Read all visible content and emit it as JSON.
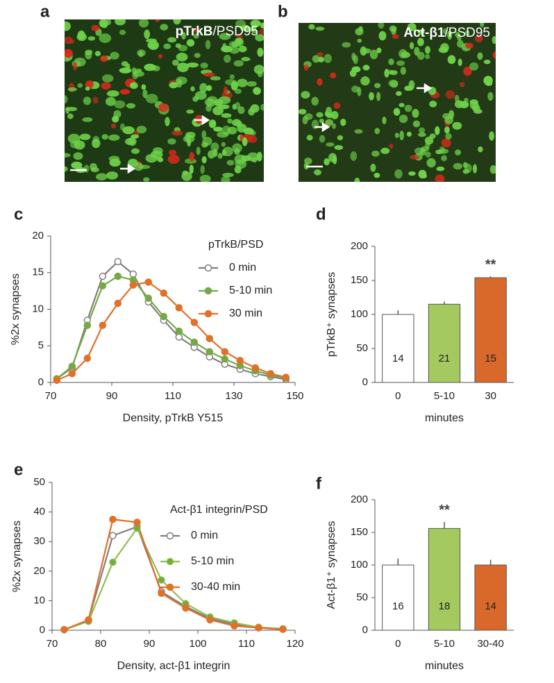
{
  "images": [
    {
      "panel": "a",
      "title_bold": "pTrkB",
      "title_rest": "/PSD95"
    },
    {
      "panel": "b",
      "title_bold": "Act-β1",
      "title_rest": "/PSD95"
    }
  ],
  "chart_data": [
    {
      "type": "line",
      "panel": "c",
      "legend_title": "pTrkB/PSD",
      "xlabel": "Density, pTrkB Y515",
      "ylabel": "%2x synapses",
      "x": [
        72,
        77,
        82,
        87,
        92,
        97,
        102,
        107,
        112,
        117,
        122,
        127,
        132,
        137,
        142,
        147
      ],
      "series": [
        {
          "name": "0 min",
          "color": "#7f7f7f",
          "marker_fill": "#ffffff",
          "values": [
            0.5,
            2,
            8.5,
            14.5,
            16.5,
            14.8,
            11,
            8.5,
            6.2,
            4.8,
            3.5,
            2.5,
            1.8,
            1.2,
            0.8,
            0.4
          ]
        },
        {
          "name": "5-10 min",
          "color": "#77a843",
          "marker_fill": "#77a843",
          "values": [
            0.5,
            2.2,
            7.8,
            13.2,
            14.5,
            14,
            11.5,
            9,
            7,
            5.5,
            4.2,
            3.2,
            2.3,
            1.6,
            1,
            0.6
          ]
        },
        {
          "name": "30 min",
          "color": "#e0702a",
          "marker_fill": "#e0702a",
          "values": [
            0.3,
            1.2,
            3.3,
            7.8,
            10.8,
            13.3,
            13.7,
            12.2,
            10.2,
            8.2,
            6,
            4.2,
            3,
            2,
            1.2,
            0.7
          ]
        }
      ],
      "xlim": [
        70,
        150
      ],
      "xticks": [
        70,
        90,
        110,
        130,
        150
      ],
      "ylim": [
        0,
        20
      ],
      "yticks": [
        0,
        5,
        10,
        15,
        20
      ]
    },
    {
      "type": "bar",
      "panel": "d",
      "xlabel": "minutes",
      "ylabel": "pTrkB⁺ synapses",
      "categories": [
        "0",
        "5-10",
        "30"
      ],
      "values": [
        100,
        115,
        154
      ],
      "errors": [
        6,
        4,
        2
      ],
      "counts": [
        "14",
        "21",
        "15"
      ],
      "colors": [
        "#ffffff",
        "#a4c95f",
        "#d9692a"
      ],
      "annotations": [
        {
          "text": "**",
          "category": "30"
        }
      ],
      "ylim": [
        0,
        200
      ],
      "yticks": [
        0,
        50,
        100,
        150,
        200
      ]
    },
    {
      "type": "line",
      "panel": "e",
      "legend_title": "Act-β1 integrin/PSD",
      "xlabel": "Density, act-β1 integrin",
      "ylabel": "%2x synapses",
      "x": [
        72.5,
        77.5,
        82.5,
        87.5,
        92.5,
        97.5,
        102.5,
        107.5,
        112.5,
        117.5
      ],
      "series": [
        {
          "name": "0 min",
          "color": "#7f7f7f",
          "marker_fill": "#ffffff",
          "values": [
            0.2,
            3.5,
            32,
            35,
            13,
            8,
            4,
            2,
            1,
            0.4
          ]
        },
        {
          "name": "5-10 min",
          "color": "#8fbf4f",
          "marker_fill": "#77a843",
          "values": [
            0.2,
            3,
            23,
            34.5,
            17,
            9,
            4.5,
            2.5,
            1,
            0.5
          ]
        },
        {
          "name": "30-40 min",
          "color": "#e0702a",
          "marker_fill": "#e0702a",
          "values": [
            0.2,
            3.5,
            37.5,
            36.5,
            12.5,
            7.5,
            3.5,
            1.5,
            0.8,
            0.3
          ]
        }
      ],
      "xlim": [
        70,
        120
      ],
      "xticks": [
        70,
        80,
        90,
        100,
        110,
        120
      ],
      "ylim": [
        0,
        50
      ],
      "yticks": [
        0,
        10,
        20,
        30,
        40,
        50
      ]
    },
    {
      "type": "bar",
      "panel": "f",
      "xlabel": "minutes",
      "ylabel": "Act-β1⁺ synapses",
      "categories": [
        "0",
        "5-10",
        "30-40"
      ],
      "values": [
        100,
        156,
        100
      ],
      "errors": [
        10,
        10,
        8
      ],
      "counts": [
        "16",
        "18",
        "14"
      ],
      "colors": [
        "#ffffff",
        "#a4c95f",
        "#d9692a"
      ],
      "annotations": [
        {
          "text": "**",
          "category": "5-10"
        }
      ],
      "ylim": [
        0,
        200
      ],
      "yticks": [
        0,
        50,
        100,
        150,
        200
      ]
    }
  ]
}
